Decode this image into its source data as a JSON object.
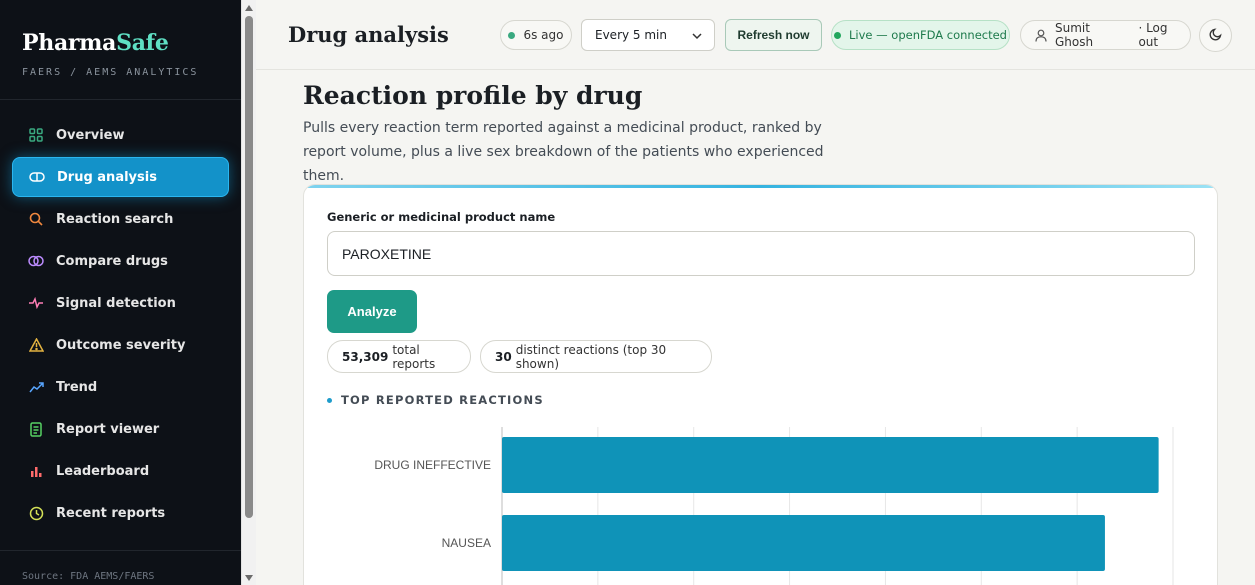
{
  "sidebar": {
    "brand_main": "Pharma",
    "brand_accent": "Safe",
    "brand_sub": "FAERS / AEMS ANALYTICS",
    "items": [
      {
        "label": "Overview",
        "icon": "grid-icon",
        "color": "#3aa980"
      },
      {
        "label": "Drug analysis",
        "icon": "pill-icon",
        "color": "#ffffff",
        "active": true
      },
      {
        "label": "Reaction search",
        "icon": "search-icon",
        "color": "#f0883e"
      },
      {
        "label": "Compare drugs",
        "icon": "compare-icon",
        "color": "#bc8cff"
      },
      {
        "label": "Signal detection",
        "icon": "pulse-icon",
        "color": "#ff7eb6"
      },
      {
        "label": "Outcome severity",
        "icon": "warning-icon",
        "color": "#e3b341"
      },
      {
        "label": "Trend",
        "icon": "trend-icon",
        "color": "#58a6ff"
      },
      {
        "label": "Report viewer",
        "icon": "document-icon",
        "color": "#56d364"
      },
      {
        "label": "Leaderboard",
        "icon": "bar-chart-icon",
        "color": "#ff6b6b"
      },
      {
        "label": "Recent reports",
        "icon": "clock-icon",
        "color": "#d4e157"
      }
    ],
    "footer": "Source: FDA AEMS/FAERS"
  },
  "header": {
    "title": "Drug analysis",
    "last_updated": "6s ago",
    "interval": "Every 5 min",
    "refresh_label": "Refresh now",
    "live_status": "Live — openFDA connected",
    "user_name": "Sumit Ghosh",
    "logout_label": "· Log out"
  },
  "main": {
    "title": "Reaction profile by drug",
    "description": "Pulls every reaction term reported against a medicinal product, ranked by report volume, plus a live sex breakdown of the patients who experienced them.",
    "field_label": "Generic or medicinal product name",
    "field_value": "PAROXETINE",
    "analyze_label": "Analyze",
    "total_reports_value": "53,309",
    "total_reports_text": "total reports",
    "distinct_value": "30",
    "distinct_text": "distinct reactions (top 30 shown)",
    "chart_heading": "TOP REPORTED REACTIONS"
  },
  "colors": {
    "accent": "#1392c9",
    "bar": "#0f93b8",
    "button": "#1e9a87"
  },
  "chart_data": {
    "type": "bar",
    "orientation": "horizontal",
    "categories": [
      "DRUG INEFFECTIVE",
      "NAUSEA"
    ],
    "values": [
      6850,
      6290
    ],
    "xlim": [
      0,
      7000
    ],
    "grid": true
  }
}
